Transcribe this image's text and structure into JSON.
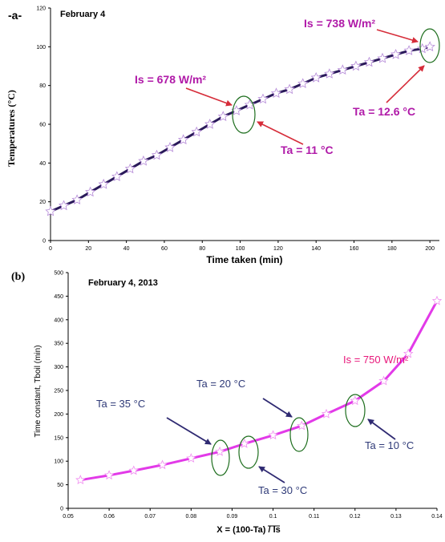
{
  "chart_data": [
    {
      "type": "line",
      "panel_label": "-a-",
      "title": "February 4",
      "xlabel": "Time taken (min)",
      "ylabel": "Temperatures (°C)",
      "xlim": [
        0,
        205
      ],
      "ylim": [
        0,
        120
      ],
      "xticks": [
        0,
        20,
        40,
        60,
        80,
        100,
        120,
        140,
        160,
        180,
        200
      ],
      "yticks": [
        0,
        20,
        40,
        60,
        80,
        100,
        120
      ],
      "grid": false,
      "line_color": "#2a1a5a",
      "marker_color": "#b58ad8",
      "series": [
        {
          "x": [
            0,
            7,
            14,
            21,
            28,
            35,
            42,
            49,
            56,
            63,
            70,
            77,
            84,
            91,
            98,
            105,
            112,
            119,
            126,
            133,
            140,
            147,
            154,
            161,
            168,
            175,
            182,
            189,
            196,
            200
          ],
          "y": [
            15,
            18,
            21,
            25,
            29,
            33,
            37,
            41,
            44,
            48,
            52,
            56,
            60,
            64,
            67,
            70,
            73,
            76,
            78,
            81,
            84,
            86,
            88,
            90,
            92,
            94,
            96,
            98,
            99,
            100
          ]
        }
      ],
      "annotations": [
        {
          "text": "Is = 738 W/m²",
          "color": "#b01aa8"
        },
        {
          "text": "Is = 678 W/m²",
          "color": "#b01aa8"
        },
        {
          "text": "Ta = 11 °C",
          "color": "#b01aa8"
        },
        {
          "text": "Ta = 12.6 °C",
          "color": "#b01aa8"
        }
      ]
    },
    {
      "type": "line",
      "panel_label": "(b)",
      "title": "February 4, 2013",
      "xlabel": "X = (100-Ta) / Is",
      "ylabel": "Time constant, Tboil (min)",
      "xlim": [
        0.05,
        0.14
      ],
      "ylim": [
        0,
        500
      ],
      "xticks": [
        0.05,
        0.06,
        0.07,
        0.08,
        0.09,
        0.1,
        0.11,
        0.12,
        0.13,
        0.14
      ],
      "yticks": [
        0,
        50,
        100,
        150,
        200,
        250,
        300,
        350,
        400,
        450,
        500
      ],
      "grid": false,
      "line_color": "#e23ae8",
      "marker_color": "#f08cf0",
      "series": [
        {
          "x": [
            0.053,
            0.06,
            0.066,
            0.073,
            0.08,
            0.087,
            0.093,
            0.1,
            0.107,
            0.113,
            0.12,
            0.127,
            0.133,
            0.14
          ],
          "y": [
            60,
            70,
            80,
            92,
            106,
            120,
            137,
            155,
            175,
            200,
            228,
            270,
            328,
            440
          ]
        }
      ],
      "annotations": [
        {
          "text": "Is = 750 W/m²",
          "color": "#e8177a"
        },
        {
          "text": "Ta = 20 °C",
          "color": "#2f3a78"
        },
        {
          "text": "Ta = 35 °C",
          "color": "#2f3a78"
        },
        {
          "text": "Ta = 30 °C",
          "color": "#2f3a78"
        },
        {
          "text": "Ta = 10 °C",
          "color": "#2f3a78"
        }
      ]
    }
  ]
}
